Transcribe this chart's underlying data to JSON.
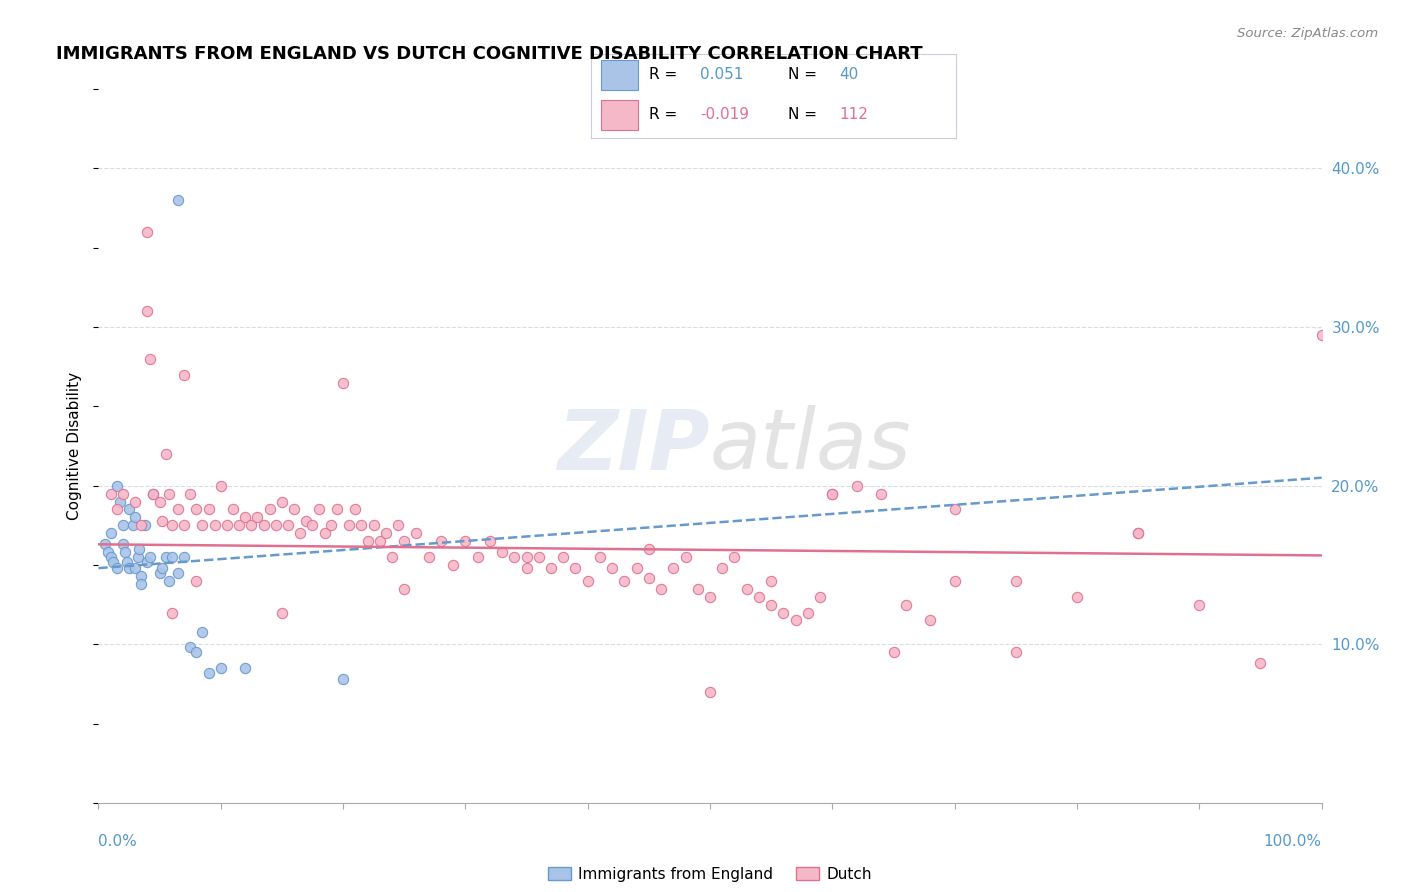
{
  "title": "IMMIGRANTS FROM ENGLAND VS DUTCH COGNITIVE DISABILITY CORRELATION CHART",
  "source": "Source: ZipAtlas.com",
  "ylabel": "Cognitive Disability",
  "xlim": [
    0.0,
    1.0
  ],
  "ylim": [
    0.0,
    0.45
  ],
  "yticks": [
    0.0,
    0.1,
    0.2,
    0.3,
    0.4
  ],
  "ytick_labels": [
    "",
    "10.0%",
    "20.0%",
    "30.0%",
    "40.0%"
  ],
  "blue_R": "0.051",
  "blue_N": "40",
  "pink_R": "-0.019",
  "pink_N": "112",
  "legend_label_blue": "Immigrants from England",
  "legend_label_pink": "Dutch",
  "blue_scatter_x": [
    0.005,
    0.008,
    0.01,
    0.01,
    0.012,
    0.015,
    0.015,
    0.018,
    0.02,
    0.02,
    0.022,
    0.023,
    0.025,
    0.025,
    0.028,
    0.03,
    0.03,
    0.032,
    0.033,
    0.035,
    0.035,
    0.038,
    0.04,
    0.042,
    0.045,
    0.05,
    0.052,
    0.055,
    0.058,
    0.06,
    0.065,
    0.07,
    0.075,
    0.08,
    0.085,
    0.09,
    0.1,
    0.12,
    0.2,
    0.065
  ],
  "blue_scatter_y": [
    0.163,
    0.158,
    0.17,
    0.155,
    0.152,
    0.2,
    0.148,
    0.19,
    0.175,
    0.163,
    0.158,
    0.152,
    0.185,
    0.148,
    0.175,
    0.18,
    0.148,
    0.155,
    0.16,
    0.143,
    0.138,
    0.175,
    0.152,
    0.155,
    0.195,
    0.145,
    0.148,
    0.155,
    0.14,
    0.155,
    0.145,
    0.155,
    0.098,
    0.095,
    0.108,
    0.082,
    0.085,
    0.085,
    0.078,
    0.38
  ],
  "pink_scatter_x": [
    0.01,
    0.015,
    0.02,
    0.03,
    0.035,
    0.04,
    0.042,
    0.045,
    0.05,
    0.052,
    0.055,
    0.058,
    0.06,
    0.065,
    0.07,
    0.075,
    0.08,
    0.085,
    0.09,
    0.095,
    0.1,
    0.105,
    0.11,
    0.115,
    0.12,
    0.125,
    0.13,
    0.135,
    0.14,
    0.145,
    0.15,
    0.155,
    0.16,
    0.165,
    0.17,
    0.175,
    0.18,
    0.185,
    0.19,
    0.195,
    0.2,
    0.205,
    0.21,
    0.215,
    0.22,
    0.225,
    0.23,
    0.235,
    0.24,
    0.245,
    0.25,
    0.26,
    0.27,
    0.28,
    0.29,
    0.3,
    0.31,
    0.32,
    0.33,
    0.34,
    0.35,
    0.36,
    0.37,
    0.38,
    0.39,
    0.4,
    0.41,
    0.42,
    0.43,
    0.44,
    0.45,
    0.46,
    0.47,
    0.48,
    0.49,
    0.5,
    0.51,
    0.52,
    0.53,
    0.54,
    0.55,
    0.56,
    0.57,
    0.58,
    0.59,
    0.6,
    0.62,
    0.64,
    0.66,
    0.68,
    0.7,
    0.75,
    0.8,
    0.85,
    0.9,
    0.95,
    1.0,
    0.5,
    0.6,
    0.55,
    0.45,
    0.35,
    0.25,
    0.15,
    0.04,
    0.07,
    0.08,
    0.06,
    0.65,
    0.75,
    0.85,
    0.7
  ],
  "pink_scatter_y": [
    0.195,
    0.185,
    0.195,
    0.19,
    0.175,
    0.31,
    0.28,
    0.195,
    0.19,
    0.178,
    0.22,
    0.195,
    0.175,
    0.185,
    0.175,
    0.195,
    0.185,
    0.175,
    0.185,
    0.175,
    0.2,
    0.175,
    0.185,
    0.175,
    0.18,
    0.175,
    0.18,
    0.175,
    0.185,
    0.175,
    0.19,
    0.175,
    0.185,
    0.17,
    0.178,
    0.175,
    0.185,
    0.17,
    0.175,
    0.185,
    0.265,
    0.175,
    0.185,
    0.175,
    0.165,
    0.175,
    0.165,
    0.17,
    0.155,
    0.175,
    0.165,
    0.17,
    0.155,
    0.165,
    0.15,
    0.165,
    0.155,
    0.165,
    0.158,
    0.155,
    0.148,
    0.155,
    0.148,
    0.155,
    0.148,
    0.14,
    0.155,
    0.148,
    0.14,
    0.148,
    0.142,
    0.135,
    0.148,
    0.155,
    0.135,
    0.13,
    0.148,
    0.155,
    0.135,
    0.13,
    0.125,
    0.12,
    0.115,
    0.12,
    0.13,
    0.195,
    0.2,
    0.195,
    0.125,
    0.115,
    0.14,
    0.095,
    0.13,
    0.17,
    0.125,
    0.088,
    0.295,
    0.07,
    0.195,
    0.14,
    0.16,
    0.155,
    0.135,
    0.12,
    0.36,
    0.27,
    0.14,
    0.12,
    0.095,
    0.14,
    0.17,
    0.185
  ],
  "blue_line_y_start": 0.148,
  "blue_line_y_end": 0.205,
  "pink_line_y_start": 0.163,
  "pink_line_y_end": 0.156,
  "background_color": "#ffffff",
  "grid_color": "#d8dce8",
  "blue_scatter_color": "#aac4e8",
  "blue_scatter_edge": "#6699cc",
  "pink_scatter_color": "#f4b8c8",
  "pink_scatter_edge": "#e07090",
  "blue_line_color": "#6699cc",
  "pink_line_color": "#e07090",
  "right_axis_color": "#5599cc",
  "title_fontsize": 13,
  "label_fontsize": 11,
  "tick_fontsize": 11
}
